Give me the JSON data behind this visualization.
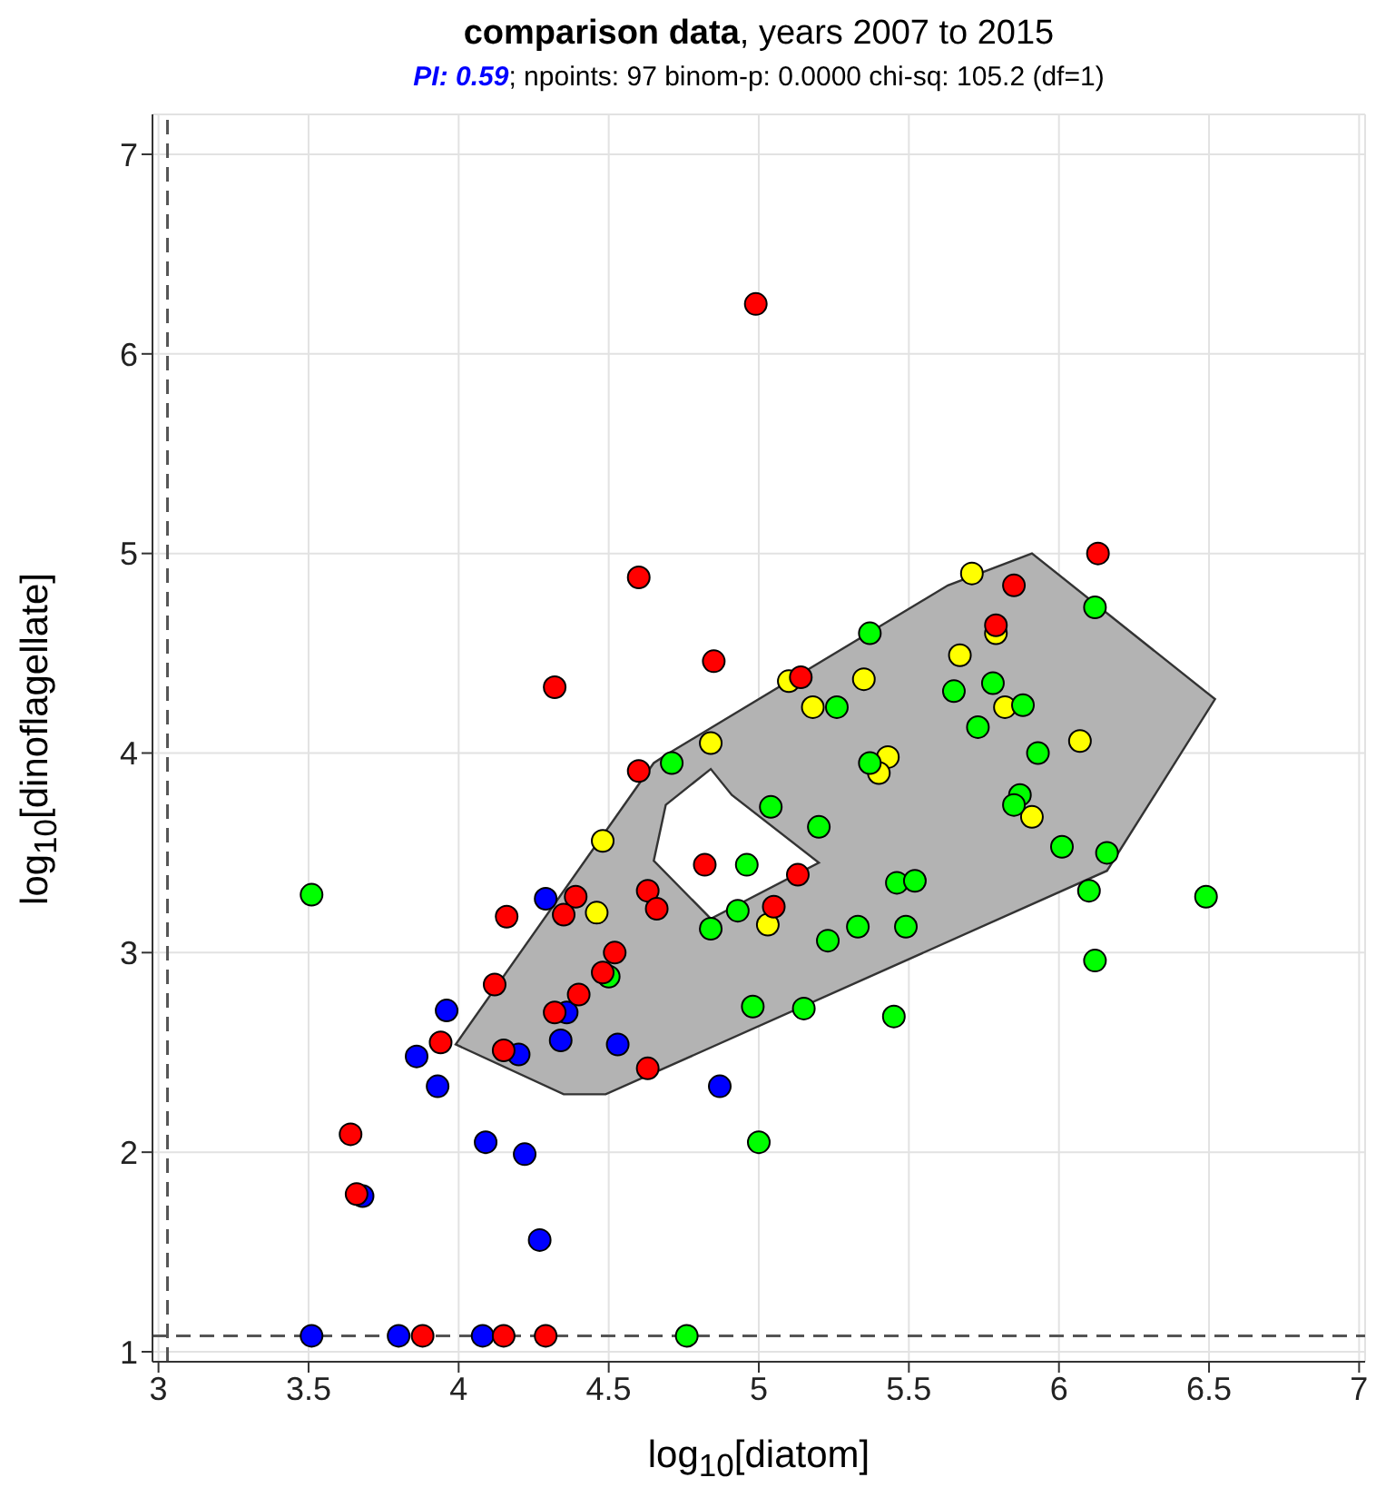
{
  "chart_data": {
    "type": "scatter",
    "title": "comparison data, years 2007 to 2015",
    "subtitle": "PI: 0.59; npoints: 97 binom-p: 0.0000 chi-sq: 105.2 (df=1)",
    "xlabel": "log$_{10}$[diatom]",
    "ylabel": "log$_{10}$[dinoflagellate]",
    "xlim": [
      2.98,
      7.02
    ],
    "xticks": [
      3,
      3.5,
      4,
      4.5,
      5,
      5.5,
      6,
      6.5,
      7
    ],
    "ylim": [
      0.95,
      7.2
    ],
    "yticks": [
      1,
      2,
      3,
      4,
      5,
      6,
      7
    ],
    "grid": true,
    "marker": "circle",
    "ref_lines": [
      {
        "axis": "x",
        "value": 3.03,
        "color": "#555555",
        "line_style": "dashed"
      },
      {
        "axis": "y",
        "value": 1.08,
        "color": "#555555",
        "line_style": "dashed"
      }
    ],
    "series": [
      {
        "type": "area",
        "marker": "none",
        "color": "#b3b3b3",
        "x": [
          3.99,
          4.35,
          4.49,
          6.16,
          6.52,
          5.91,
          5.63,
          4.69,
          4.65
        ],
        "values": [
          2.54,
          2.29,
          2.29,
          3.41,
          4.27,
          5.0,
          4.84,
          3.99,
          3.95
        ]
      },
      {
        "type": "area",
        "marker": "none",
        "color": "#ffffff",
        "x": [
          4.84,
          4.69,
          4.65,
          4.84,
          5.2,
          4.91
        ],
        "values": [
          3.92,
          3.74,
          3.46,
          3.17,
          3.45,
          3.79
        ]
      },
      {
        "color": "#0000ff",
        "x": [
          4.29,
          3.96,
          3.86,
          3.93,
          4.2,
          4.36,
          4.34,
          4.53,
          4.87,
          4.09,
          4.22,
          4.27,
          3.68,
          3.51,
          3.8,
          4.08
        ],
        "values": [
          3.27,
          2.71,
          2.48,
          2.33,
          2.49,
          2.7,
          2.56,
          2.54,
          2.33,
          2.05,
          1.99,
          1.56,
          1.78,
          1.08,
          1.08,
          1.08
        ]
      },
      {
        "color": "#ffff00",
        "x": [
          4.84,
          4.48,
          4.46,
          5.71,
          5.79,
          5.67,
          5.1,
          5.35,
          5.18,
          5.82,
          5.43,
          5.4,
          6.07,
          5.91,
          5.03
        ],
        "values": [
          4.05,
          3.56,
          3.2,
          4.9,
          4.6,
          4.49,
          4.36,
          4.37,
          4.23,
          4.23,
          3.98,
          3.9,
          4.06,
          3.68,
          3.14
        ]
      },
      {
        "color": "#00ff00",
        "x": [
          4.71,
          5.37,
          5.26,
          5.65,
          5.78,
          5.88,
          6.12,
          5.73,
          5.93,
          5.37,
          5.04,
          5.2,
          5.87,
          5.85,
          4.96,
          6.01,
          6.16,
          5.46,
          5.52,
          6.1,
          6.49,
          4.93,
          4.84,
          4.98,
          4.5,
          3.51,
          5.0,
          4.76,
          5.33,
          5.23,
          5.49,
          5.15,
          5.45,
          6.12
        ],
        "values": [
          3.95,
          4.6,
          4.23,
          4.31,
          4.35,
          4.24,
          4.73,
          4.13,
          4.0,
          3.95,
          3.73,
          3.63,
          3.79,
          3.74,
          3.44,
          3.53,
          3.5,
          3.35,
          3.36,
          3.31,
          3.28,
          3.21,
          3.12,
          2.73,
          2.88,
          3.29,
          2.05,
          1.08,
          3.13,
          3.06,
          3.13,
          2.72,
          2.68,
          2.96
        ]
      },
      {
        "color": "#ff0000",
        "x": [
          4.99,
          4.6,
          4.85,
          4.32,
          4.6,
          6.13,
          5.85,
          5.79,
          5.14,
          5.13,
          5.05,
          4.82,
          4.63,
          4.66,
          4.39,
          4.35,
          4.16,
          4.52,
          4.48,
          4.4,
          4.32,
          4.12,
          3.94,
          4.15,
          4.63,
          3.64,
          3.66,
          3.88,
          4.15,
          4.29
        ],
        "values": [
          6.25,
          4.88,
          4.46,
          4.33,
          3.91,
          5.0,
          4.84,
          4.64,
          4.38,
          3.39,
          3.23,
          3.44,
          3.31,
          3.22,
          3.28,
          3.19,
          3.18,
          3.0,
          2.9,
          2.79,
          2.7,
          2.84,
          2.55,
          2.51,
          2.42,
          2.09,
          1.79,
          1.08,
          1.08,
          1.08
        ]
      }
    ]
  }
}
